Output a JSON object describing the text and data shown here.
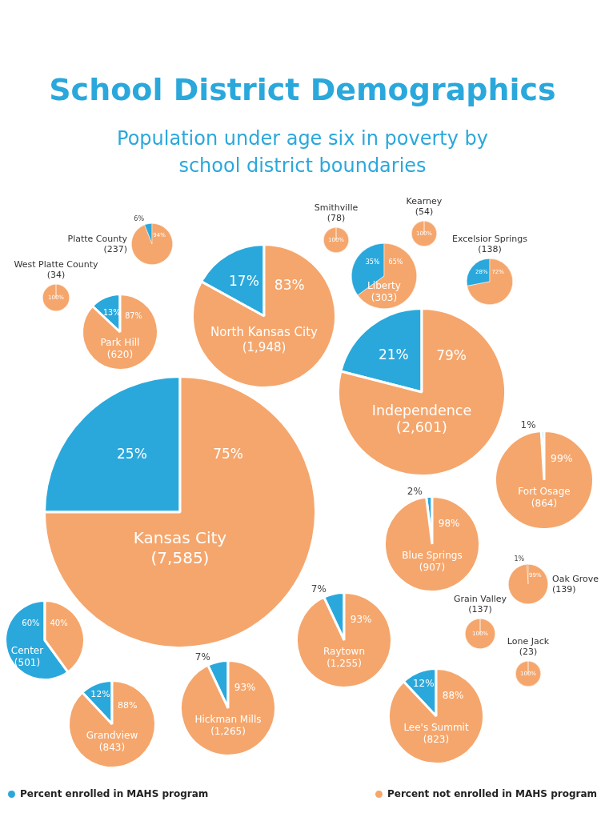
{
  "chart_data": [
    {
      "type": "other",
      "title": "School District Demographics",
      "subtitle": "Population under age six in poverty by school district boundaries"
    },
    {
      "type": "pie",
      "title": "Platte County (237)",
      "categories": [
        null,
        null
      ],
      "values": [
        6,
        94
      ],
      "colors": [
        "#2aa8dc",
        "#f5a66c"
      ],
      "value_labels": [
        "6%",
        "94%"
      ]
    },
    {
      "type": "pie",
      "title": "West Platte County (34)",
      "categories": [
        null,
        null
      ],
      "values": [
        0,
        100
      ],
      "colors": [
        "#2aa8dc",
        "#f5a66c"
      ],
      "value_labels": [
        null,
        "100%"
      ]
    },
    {
      "type": "pie",
      "title": "Park Hill (620)",
      "categories": [
        null,
        null
      ],
      "values": [
        13,
        87
      ],
      "colors": [
        "#2aa8dc",
        "#f5a66c"
      ],
      "value_labels": [
        "13%",
        "87%"
      ]
    },
    {
      "type": "pie",
      "title": "North Kansas City (1,948)",
      "categories": [
        null,
        null
      ],
      "values": [
        17,
        83
      ],
      "colors": [
        "#2aa8dc",
        "#f5a66c"
      ],
      "value_labels": [
        "17%",
        "83%"
      ]
    },
    {
      "type": "pie",
      "title": "Smithville (78)",
      "categories": [
        null,
        null
      ],
      "values": [
        0,
        100
      ],
      "colors": [
        "#2aa8dc",
        "#f5a66c"
      ],
      "value_labels": [
        null,
        "100%"
      ]
    },
    {
      "type": "pie",
      "title": "Kearney (54)",
      "categories": [
        null,
        null
      ],
      "values": [
        0,
        100
      ],
      "colors": [
        "#2aa8dc",
        "#f5a66c"
      ],
      "value_labels": [
        null,
        "100%"
      ]
    },
    {
      "type": "pie",
      "title": "Liberty (303)",
      "categories": [
        null,
        null
      ],
      "values": [
        35,
        65
      ],
      "colors": [
        "#2aa8dc",
        "#f5a66c"
      ],
      "value_labels": [
        "35%",
        "65%"
      ]
    },
    {
      "type": "pie",
      "title": "Excelsior Springs (138)",
      "categories": [
        null,
        null
      ],
      "values": [
        28,
        72
      ],
      "colors": [
        "#2aa8dc",
        "#f5a66c"
      ],
      "value_labels": [
        "28%",
        "72%"
      ]
    },
    {
      "type": "pie",
      "title": "Independence (2,601)",
      "categories": [
        null,
        null
      ],
      "values": [
        21,
        79
      ],
      "colors": [
        "#2aa8dc",
        "#f5a66c"
      ],
      "value_labels": [
        "21%",
        "79%"
      ]
    },
    {
      "type": "pie",
      "title": "Kansas City (7,585)",
      "categories": [
        null,
        null
      ],
      "values": [
        25,
        75
      ],
      "colors": [
        "#2aa8dc",
        "#f5a66c"
      ],
      "value_labels": [
        "25%",
        "75%"
      ]
    },
    {
      "type": "pie",
      "title": "Fort Osage (864)",
      "categories": [
        null,
        null
      ],
      "values": [
        1,
        99
      ],
      "colors": [
        "#2aa8dc",
        "#f5a66c"
      ],
      "value_labels": [
        "1%",
        "99%"
      ]
    },
    {
      "type": "pie",
      "title": "Blue Springs (907)",
      "categories": [
        null,
        null
      ],
      "values": [
        2,
        98
      ],
      "colors": [
        "#2aa8dc",
        "#f5a66c"
      ],
      "value_labels": [
        "2%",
        "98%"
      ]
    },
    {
      "type": "pie",
      "title": "Oak Grove (139)",
      "categories": [
        null,
        null
      ],
      "values": [
        1,
        99
      ],
      "colors": [
        "#2aa8dc",
        "#f5a66c"
      ],
      "value_labels": [
        "1%",
        "99%"
      ]
    },
    {
      "type": "pie",
      "title": "Center (501)",
      "categories": [
        null,
        null
      ],
      "values": [
        60,
        40
      ],
      "colors": [
        "#2aa8dc",
        "#f5a66c"
      ],
      "value_labels": [
        "60%",
        "40%"
      ]
    },
    {
      "type": "pie",
      "title": "Raytown (1,255)",
      "categories": [
        null,
        null
      ],
      "values": [
        7,
        93
      ],
      "colors": [
        "#2aa8dc",
        "#f5a66c"
      ],
      "value_labels": [
        "7%",
        "93%"
      ]
    },
    {
      "type": "pie",
      "title": "Grain Valley (137)",
      "categories": [
        null,
        null
      ],
      "values": [
        0,
        100
      ],
      "colors": [
        "#2aa8dc",
        "#f5a66c"
      ],
      "value_labels": [
        null,
        "100%"
      ]
    },
    {
      "type": "pie",
      "title": "Hickman Mills (1,265)",
      "categories": [
        null,
        null
      ],
      "values": [
        7,
        93
      ],
      "colors": [
        "#2aa8dc",
        "#f5a66c"
      ],
      "value_labels": [
        "7%",
        "93%"
      ]
    },
    {
      "type": "pie",
      "title": "Lone Jack (23)",
      "categories": [
        null,
        null
      ],
      "values": [
        0,
        100
      ],
      "colors": [
        "#2aa8dc",
        "#f5a66c"
      ],
      "value_labels": [
        null,
        "100%"
      ]
    },
    {
      "type": "pie",
      "title": "Grandview (843)",
      "categories": [
        null,
        null
      ],
      "values": [
        12,
        88
      ],
      "colors": [
        "#2aa8dc",
        "#f5a66c"
      ],
      "value_labels": [
        "12%",
        "88%"
      ]
    },
    {
      "type": "pie",
      "title": "Lee's Summit (823)",
      "categories": [
        "Percent enrolled in MAHS program",
        "Percent not enrolled in MAHS program"
      ],
      "values": [
        12,
        88
      ],
      "colors": [
        "#2aa8dc",
        "#f5a66c"
      ],
      "value_labels": [
        "12%",
        "88%"
      ],
      "legend": "bottom"
    }
  ]
}
